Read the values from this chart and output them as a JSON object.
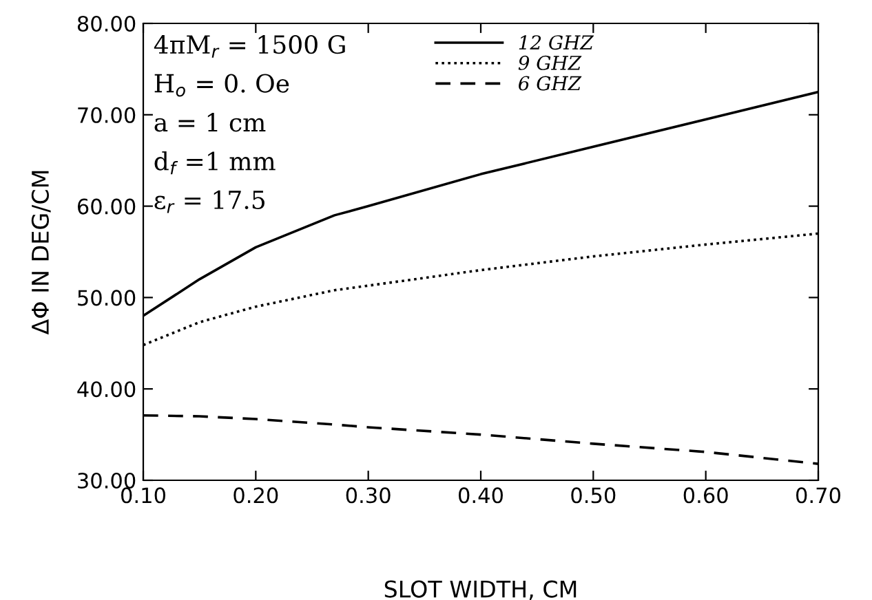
{
  "chart_data": {
    "type": "line",
    "xlabel": "SLOT WIDTH, CM",
    "ylabel": "ΔΦ IN DEG/CM",
    "x": [
      0.1,
      0.15,
      0.2,
      0.27,
      0.3,
      0.4,
      0.5,
      0.6,
      0.7
    ],
    "series": [
      {
        "name": "12 GHZ",
        "color": "#000000",
        "line_style": "solid",
        "values": [
          48,
          52,
          55.5,
          59,
          60,
          63.5,
          66.5,
          69.5,
          72.5
        ]
      },
      {
        "name": "9 GHZ",
        "color": "#000000",
        "line_style": "dotted",
        "values": [
          44.8,
          47.3,
          49,
          50.8,
          51.3,
          53,
          54.5,
          55.8,
          57
        ]
      },
      {
        "name": "6 GHZ",
        "color": "#000000",
        "line_style": "dashed",
        "values": [
          37.1,
          37.0,
          36.7,
          36.1,
          35.8,
          35.0,
          34.0,
          33.1,
          31.8
        ]
      }
    ],
    "xlim": [
      0.1,
      0.7
    ],
    "ylim": [
      30,
      80
    ],
    "xticks": [
      {
        "value": 0.1,
        "label": "0.10"
      },
      {
        "value": 0.2,
        "label": "0.20"
      },
      {
        "value": 0.3,
        "label": "0.30"
      },
      {
        "value": 0.4,
        "label": "0.40"
      },
      {
        "value": 0.5,
        "label": "0.50"
      },
      {
        "value": 0.6,
        "label": "0.60"
      },
      {
        "value": 0.7,
        "label": "0.70"
      }
    ],
    "yticks": [
      {
        "value": 30,
        "label": "30.00"
      },
      {
        "value": 40,
        "label": "40.00"
      },
      {
        "value": 50,
        "label": "50.00"
      },
      {
        "value": 60,
        "label": "60.00"
      },
      {
        "value": 70,
        "label": "70.00"
      },
      {
        "value": 80,
        "label": "80.00"
      }
    ],
    "annotations": [
      "4πM$_{r}$ = 1500 G",
      "H$_{o}$ = 0. Oe",
      "a = 1 cm",
      "d$_{f}$ =1 mm",
      "ε$_{r}$ = 17.5"
    ],
    "legend": "top",
    "grid": false
  }
}
